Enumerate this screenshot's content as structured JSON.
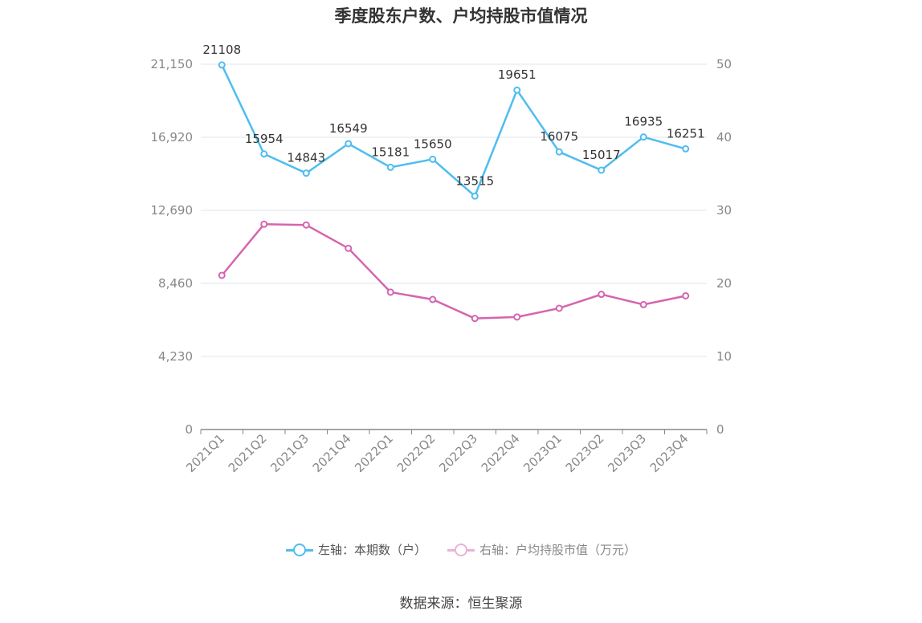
{
  "chart_data": {
    "type": "line",
    "title": "季度股东户数、户均持股市值情况",
    "categories": [
      "2021Q1",
      "2021Q2",
      "2021Q3",
      "2021Q4",
      "2022Q1",
      "2022Q2",
      "2022Q3",
      "2022Q4",
      "2023Q1",
      "2023Q2",
      "2023Q3",
      "2023Q4"
    ],
    "series": [
      {
        "name": "左轴：本期数（户）",
        "axis": "left",
        "color": "#4fbdf0",
        "values": [
          21108,
          15954,
          14843,
          16549,
          15181,
          15650,
          13515,
          19651,
          16075,
          15017,
          16935,
          16251
        ],
        "show_labels": true
      },
      {
        "name": "右轴：户均持股市值（万元）",
        "axis": "right",
        "color": "#d565ae",
        "values": [
          21.1,
          28.1,
          28.0,
          24.8,
          18.8,
          17.8,
          15.2,
          15.4,
          16.6,
          18.5,
          17.1,
          18.3
        ],
        "show_labels": false
      }
    ],
    "left_axis": {
      "ticks": [
        "0",
        "4,230",
        "8,460",
        "12,690",
        "16,920",
        "21,150"
      ],
      "min": 0,
      "max": 21150
    },
    "right_axis": {
      "ticks": [
        "0",
        "10",
        "20",
        "30",
        "40",
        "50"
      ],
      "min": 0,
      "max": 50
    },
    "grid": true,
    "legend_position": "bottom"
  },
  "source_text": "数据来源：恒生聚源"
}
